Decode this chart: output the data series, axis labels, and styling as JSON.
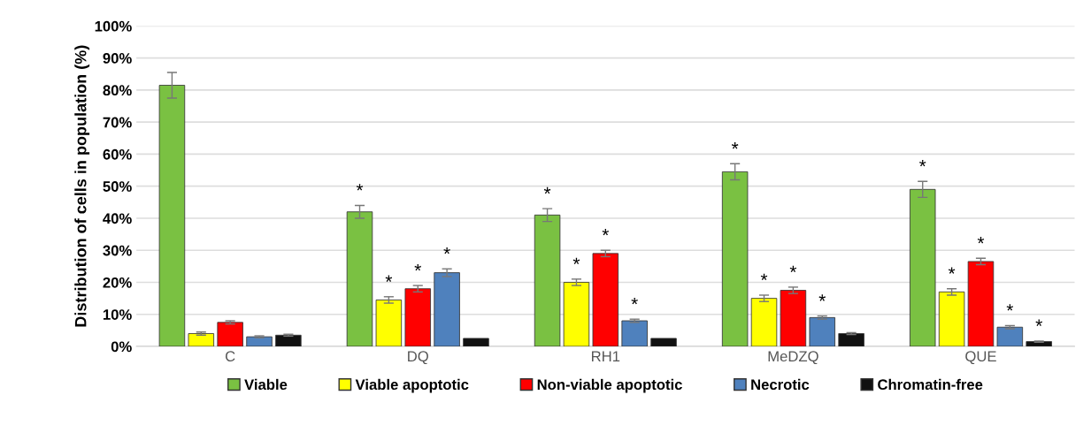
{
  "chart_data": {
    "type": "bar",
    "ylabel": "Distribution of cells in population (%)",
    "categories": [
      "C",
      "DQ",
      "RH1",
      "MeDZQ",
      "QUE"
    ],
    "series": [
      {
        "name": "Viable",
        "color": "#7ac142",
        "values": [
          81.5,
          42,
          41,
          54.5,
          49
        ],
        "errors": [
          4,
          2,
          2,
          2.5,
          2.5
        ],
        "value_labels": [
          null,
          "*",
          "*",
          "*",
          "*"
        ]
      },
      {
        "name": "Viable apoptotic",
        "color": "#ffff00",
        "values": [
          4,
          14.5,
          20,
          15,
          17
        ],
        "errors": [
          0.5,
          1,
          1,
          1,
          1
        ],
        "value_labels": [
          null,
          "*",
          "*",
          "*",
          "*"
        ]
      },
      {
        "name": "Non-viable apoptotic",
        "color": "#ff0000",
        "values": [
          7.5,
          18,
          29,
          17.5,
          26.5
        ],
        "errors": [
          0.5,
          1,
          1,
          1,
          1
        ],
        "value_labels": [
          null,
          "*",
          "*",
          "*",
          "*"
        ]
      },
      {
        "name": "Necrotic",
        "color": "#4f81bd",
        "values": [
          3,
          23,
          8,
          9,
          6
        ],
        "errors": [
          0.3,
          1.2,
          0.5,
          0.5,
          0.5
        ],
        "value_labels": [
          null,
          "*",
          "*",
          "*",
          "*"
        ]
      },
      {
        "name": "Chromatin-free",
        "color": "#111111",
        "values": [
          3.5,
          2.5,
          2.5,
          4,
          1.5
        ],
        "errors": [
          0.3,
          null,
          null,
          0.3,
          0.2
        ],
        "value_labels": [
          null,
          null,
          null,
          null,
          "*"
        ]
      }
    ],
    "ylim": [
      0,
      100
    ],
    "yticks": [
      {
        "value": 0,
        "label": "0%"
      },
      {
        "value": 10,
        "label": "10%"
      },
      {
        "value": 20,
        "label": "20%"
      },
      {
        "value": 30,
        "label": "30%"
      },
      {
        "value": 40,
        "label": "40%"
      },
      {
        "value": 50,
        "label": "50%"
      },
      {
        "value": 60,
        "label": "60%"
      },
      {
        "value": 70,
        "label": "70%"
      },
      {
        "value": 80,
        "label": "80%"
      },
      {
        "value": 90,
        "label": "90%"
      },
      {
        "value": 100,
        "label": "100%"
      }
    ],
    "grid": "y",
    "legend": "bottom"
  }
}
